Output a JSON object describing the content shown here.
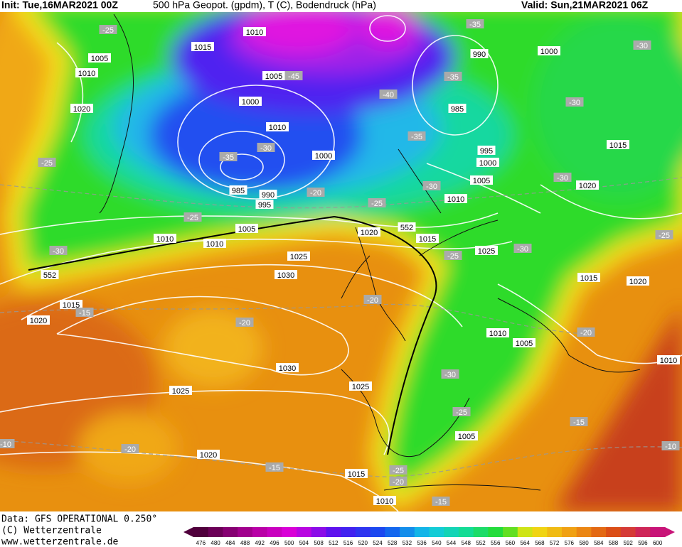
{
  "header": {
    "init": "Init: Tue,16MAR2021 00Z",
    "title": "500 hPa Geopot. (gpdm), T (C), Bodendruck (hPa)",
    "valid": "Valid: Sun,21MAR2021 06Z"
  },
  "footer": {
    "source": "Data: GFS OPERATIONAL 0.250°",
    "copyright": "(C) Wetterzentrale",
    "url": "www.wetterzentrale.de"
  },
  "map": {
    "pressure_labels": [
      "1010",
      "1015",
      "1005",
      "1010",
      "1020",
      "1005",
      "1000",
      "1010",
      "1000",
      "985",
      "990",
      "995",
      "1005",
      "1010",
      "1010",
      "1020",
      "1015",
      "1025",
      "1025",
      "1030",
      "1015",
      "1020",
      "1030",
      "1025",
      "1025",
      "1020",
      "1015",
      "1010",
      "1005",
      "1010",
      "1005",
      "1015",
      "1020",
      "1010",
      "990",
      "985",
      "995",
      "1000",
      "1005",
      "1010",
      "1000",
      "1015",
      "1020"
    ],
    "temperature_labels": [
      "-25",
      "-35",
      "-30",
      "-45",
      "-35",
      "-40",
      "-30",
      "-35",
      "-25",
      "-35",
      "-30",
      "-20",
      "-30",
      "-25",
      "-30",
      "-25",
      "-30",
      "-25",
      "-30",
      "-25",
      "-15",
      "-20",
      "-20",
      "-20",
      "-30",
      "-25",
      "-15",
      "-20",
      "-10",
      "-10",
      "-15",
      "-25",
      "-20",
      "-15"
    ],
    "geopotential_labels": [
      "552",
      "552"
    ]
  },
  "colorbar": {
    "ticks": [
      476,
      480,
      484,
      488,
      492,
      496,
      500,
      504,
      508,
      512,
      516,
      520,
      524,
      528,
      532,
      536,
      540,
      544,
      548,
      552,
      556,
      560,
      564,
      568,
      572,
      576,
      580,
      584,
      588,
      592,
      596,
      600
    ]
  }
}
